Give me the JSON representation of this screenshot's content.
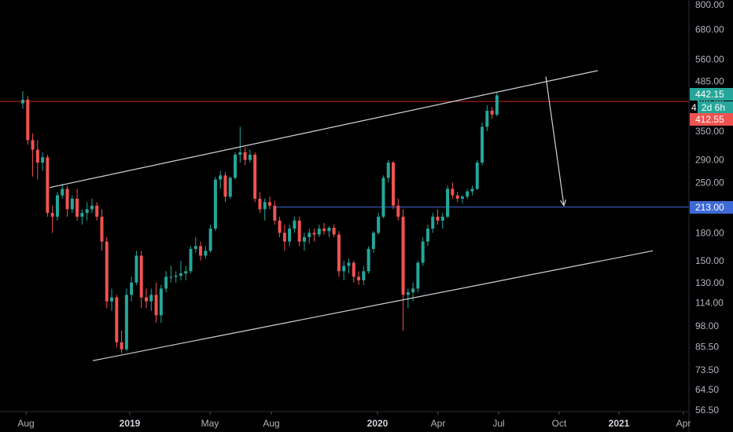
{
  "chart_data": {
    "type": "candlestick",
    "title": "",
    "xlabel": "",
    "ylabel": "",
    "y_scale": "log",
    "ylim": [
      56.5,
      800
    ],
    "y_ticks": [
      "800.00",
      "680.00",
      "560.00",
      "485.00",
      "420.00",
      "350.00",
      "290.00",
      "250.00",
      "213.00",
      "180.00",
      "150.00",
      "130.00",
      "114.00",
      "98.00",
      "85.50",
      "73.50",
      "64.50",
      "56.50"
    ],
    "x_ticks": [
      {
        "label": "Aug",
        "bold": false
      },
      {
        "label": "2019",
        "bold": true
      },
      {
        "label": "May",
        "bold": false
      },
      {
        "label": "Aug",
        "bold": false
      },
      {
        "label": "2020",
        "bold": true
      },
      {
        "label": "Apr",
        "bold": false
      },
      {
        "label": "Jul",
        "bold": false
      },
      {
        "label": "Oct",
        "bold": false
      },
      {
        "label": "2021",
        "bold": true
      },
      {
        "label": "Apr",
        "bold": false
      }
    ],
    "colors": {
      "up": "#26a69a",
      "down": "#ef5350",
      "background": "#000000",
      "axis_text": "#b2b5be",
      "trendline": "#d1d4dc",
      "support_line": "#3d6ad6",
      "resistance_line": "#c62828"
    },
    "series": [
      {
        "o": 420,
        "h": 455,
        "l": 405,
        "c": 430
      },
      {
        "o": 430,
        "h": 440,
        "l": 320,
        "c": 330
      },
      {
        "o": 330,
        "h": 345,
        "l": 260,
        "c": 310
      },
      {
        "o": 310,
        "h": 330,
        "l": 255,
        "c": 285
      },
      {
        "o": 285,
        "h": 305,
        "l": 270,
        "c": 295
      },
      {
        "o": 295,
        "h": 300,
        "l": 200,
        "c": 205
      },
      {
        "o": 205,
        "h": 215,
        "l": 180,
        "c": 200
      },
      {
        "o": 200,
        "h": 235,
        "l": 195,
        "c": 230
      },
      {
        "o": 230,
        "h": 248,
        "l": 225,
        "c": 240
      },
      {
        "o": 240,
        "h": 245,
        "l": 200,
        "c": 210
      },
      {
        "o": 210,
        "h": 230,
        "l": 205,
        "c": 225
      },
      {
        "o": 225,
        "h": 240,
        "l": 195,
        "c": 200
      },
      {
        "o": 200,
        "h": 210,
        "l": 190,
        "c": 205
      },
      {
        "o": 205,
        "h": 220,
        "l": 195,
        "c": 210
      },
      {
        "o": 210,
        "h": 225,
        "l": 205,
        "c": 215
      },
      {
        "o": 215,
        "h": 220,
        "l": 195,
        "c": 200
      },
      {
        "o": 200,
        "h": 210,
        "l": 160,
        "c": 170
      },
      {
        "o": 170,
        "h": 175,
        "l": 110,
        "c": 115
      },
      {
        "o": 115,
        "h": 125,
        "l": 108,
        "c": 118
      },
      {
        "o": 118,
        "h": 120,
        "l": 85,
        "c": 88
      },
      {
        "o": 88,
        "h": 95,
        "l": 82,
        "c": 84
      },
      {
        "o": 84,
        "h": 125,
        "l": 83,
        "c": 120
      },
      {
        "o": 120,
        "h": 135,
        "l": 115,
        "c": 130
      },
      {
        "o": 130,
        "h": 160,
        "l": 128,
        "c": 155
      },
      {
        "o": 155,
        "h": 160,
        "l": 110,
        "c": 118
      },
      {
        "o": 118,
        "h": 125,
        "l": 110,
        "c": 115
      },
      {
        "o": 115,
        "h": 125,
        "l": 108,
        "c": 120
      },
      {
        "o": 120,
        "h": 130,
        "l": 100,
        "c": 105
      },
      {
        "o": 105,
        "h": 128,
        "l": 100,
        "c": 125
      },
      {
        "o": 125,
        "h": 140,
        "l": 122,
        "c": 135
      },
      {
        "o": 135,
        "h": 145,
        "l": 130,
        "c": 135
      },
      {
        "o": 135,
        "h": 140,
        "l": 130,
        "c": 136
      },
      {
        "o": 136,
        "h": 150,
        "l": 132,
        "c": 138
      },
      {
        "o": 138,
        "h": 145,
        "l": 132,
        "c": 140
      },
      {
        "o": 140,
        "h": 165,
        "l": 138,
        "c": 162
      },
      {
        "o": 162,
        "h": 175,
        "l": 158,
        "c": 165
      },
      {
        "o": 165,
        "h": 170,
        "l": 150,
        "c": 155
      },
      {
        "o": 155,
        "h": 165,
        "l": 152,
        "c": 160
      },
      {
        "o": 160,
        "h": 190,
        "l": 158,
        "c": 185
      },
      {
        "o": 185,
        "h": 260,
        "l": 182,
        "c": 255
      },
      {
        "o": 255,
        "h": 270,
        "l": 240,
        "c": 262
      },
      {
        "o": 262,
        "h": 268,
        "l": 220,
        "c": 228
      },
      {
        "o": 228,
        "h": 260,
        "l": 225,
        "c": 258
      },
      {
        "o": 258,
        "h": 305,
        "l": 255,
        "c": 300
      },
      {
        "o": 300,
        "h": 360,
        "l": 285,
        "c": 305
      },
      {
        "o": 305,
        "h": 315,
        "l": 280,
        "c": 290
      },
      {
        "o": 290,
        "h": 310,
        "l": 285,
        "c": 300
      },
      {
        "o": 300,
        "h": 305,
        "l": 220,
        "c": 225
      },
      {
        "o": 225,
        "h": 235,
        "l": 205,
        "c": 210
      },
      {
        "o": 210,
        "h": 225,
        "l": 195,
        "c": 220
      },
      {
        "o": 220,
        "h": 228,
        "l": 210,
        "c": 215
      },
      {
        "o": 215,
        "h": 222,
        "l": 190,
        "c": 195
      },
      {
        "o": 195,
        "h": 200,
        "l": 175,
        "c": 180
      },
      {
        "o": 180,
        "h": 190,
        "l": 160,
        "c": 170
      },
      {
        "o": 170,
        "h": 190,
        "l": 165,
        "c": 185
      },
      {
        "o": 185,
        "h": 200,
        "l": 180,
        "c": 195
      },
      {
        "o": 195,
        "h": 200,
        "l": 165,
        "c": 170
      },
      {
        "o": 170,
        "h": 180,
        "l": 160,
        "c": 175
      },
      {
        "o": 175,
        "h": 185,
        "l": 168,
        "c": 180
      },
      {
        "o": 180,
        "h": 185,
        "l": 170,
        "c": 178
      },
      {
        "o": 178,
        "h": 190,
        "l": 175,
        "c": 185
      },
      {
        "o": 185,
        "h": 192,
        "l": 178,
        "c": 182
      },
      {
        "o": 182,
        "h": 188,
        "l": 175,
        "c": 186
      },
      {
        "o": 186,
        "h": 190,
        "l": 175,
        "c": 178
      },
      {
        "o": 178,
        "h": 182,
        "l": 135,
        "c": 140
      },
      {
        "o": 140,
        "h": 150,
        "l": 132,
        "c": 145
      },
      {
        "o": 145,
        "h": 152,
        "l": 138,
        "c": 148
      },
      {
        "o": 148,
        "h": 150,
        "l": 130,
        "c": 135
      },
      {
        "o": 135,
        "h": 140,
        "l": 128,
        "c": 132
      },
      {
        "o": 132,
        "h": 145,
        "l": 128,
        "c": 140
      },
      {
        "o": 140,
        "h": 165,
        "l": 138,
        "c": 162
      },
      {
        "o": 162,
        "h": 182,
        "l": 158,
        "c": 180
      },
      {
        "o": 180,
        "h": 205,
        "l": 178,
        "c": 200
      },
      {
        "o": 200,
        "h": 262,
        "l": 198,
        "c": 258
      },
      {
        "o": 258,
        "h": 290,
        "l": 250,
        "c": 285
      },
      {
        "o": 285,
        "h": 288,
        "l": 210,
        "c": 215
      },
      {
        "o": 215,
        "h": 225,
        "l": 195,
        "c": 200
      },
      {
        "o": 200,
        "h": 210,
        "l": 95,
        "c": 120
      },
      {
        "o": 120,
        "h": 125,
        "l": 110,
        "c": 122
      },
      {
        "o": 122,
        "h": 130,
        "l": 115,
        "c": 125
      },
      {
        "o": 125,
        "h": 150,
        "l": 122,
        "c": 148
      },
      {
        "o": 148,
        "h": 175,
        "l": 145,
        "c": 170
      },
      {
        "o": 170,
        "h": 190,
        "l": 165,
        "c": 185
      },
      {
        "o": 185,
        "h": 205,
        "l": 180,
        "c": 200
      },
      {
        "o": 200,
        "h": 210,
        "l": 190,
        "c": 195
      },
      {
        "o": 195,
        "h": 205,
        "l": 185,
        "c": 200
      },
      {
        "o": 200,
        "h": 245,
        "l": 198,
        "c": 240
      },
      {
        "o": 240,
        "h": 250,
        "l": 225,
        "c": 230
      },
      {
        "o": 230,
        "h": 235,
        "l": 220,
        "c": 225
      },
      {
        "o": 225,
        "h": 230,
        "l": 218,
        "c": 228
      },
      {
        "o": 228,
        "h": 240,
        "l": 225,
        "c": 236
      },
      {
        "o": 236,
        "h": 245,
        "l": 230,
        "c": 240
      },
      {
        "o": 240,
        "h": 290,
        "l": 238,
        "c": 285
      },
      {
        "o": 285,
        "h": 370,
        "l": 280,
        "c": 360
      },
      {
        "o": 360,
        "h": 415,
        "l": 350,
        "c": 400
      },
      {
        "o": 400,
        "h": 410,
        "l": 380,
        "c": 390
      },
      {
        "o": 390,
        "h": 450,
        "l": 385,
        "c": 442.15
      }
    ],
    "annotations": {
      "upper_trendline": [
        {
          "x": 63,
          "y": 242
        },
        {
          "x": 760,
          "y": 520
        }
      ],
      "lower_trendline": [
        {
          "x": 118,
          "y": 78
        },
        {
          "x": 830,
          "y": 160
        }
      ],
      "horizontal_support": {
        "value": 213.0,
        "label": "213.00"
      },
      "horizontal_resistance": {
        "value": 425.0
      },
      "arrow": {
        "from": {
          "x": 694,
          "y": 500
        },
        "to": {
          "x": 717,
          "y": 215
        }
      }
    },
    "price_tags": [
      {
        "label": "442.15",
        "value": 442.15,
        "color": "#26a69a"
      },
      {
        "label": "2d 6h",
        "value": 425.5,
        "color": "#26a69a",
        "outlined": true
      },
      {
        "label": "412.55",
        "value": 412.55,
        "color": "#ef5350"
      },
      {
        "label": "213.00",
        "value": 213.0,
        "color": "#3d6ad6"
      }
    ]
  }
}
